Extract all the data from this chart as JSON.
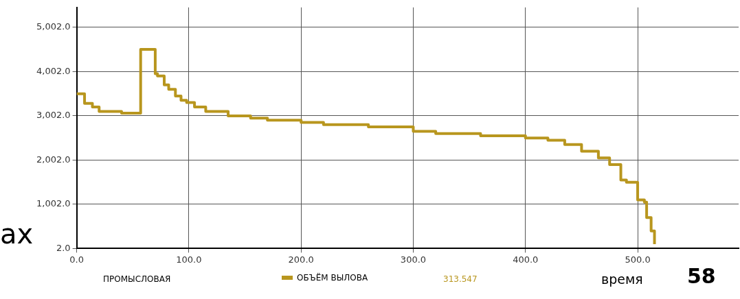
{
  "chart_data": {
    "type": "step",
    "xlabel": "время",
    "legend": "bottom",
    "grid": true,
    "marker": "none",
    "line_style": "solid",
    "xlim": [
      0,
      590
    ],
    "xticks": [
      {
        "value": 0,
        "label": "0.0"
      },
      {
        "value": 100,
        "label": "100.0"
      },
      {
        "value": 200,
        "label": "200.0"
      },
      {
        "value": 300,
        "label": "300.0"
      },
      {
        "value": 400,
        "label": "400.0"
      },
      {
        "value": 500,
        "label": "500.0"
      }
    ],
    "ylim": [
      2,
      5450
    ],
    "yticks": [
      {
        "value": 2,
        "label": "2.0"
      },
      {
        "value": 1002,
        "label": "1,002.0"
      },
      {
        "value": 2002,
        "label": "2,002.0"
      },
      {
        "value": 3002,
        "label": "3,002.0"
      },
      {
        "value": 4002,
        "label": "4,002.0"
      },
      {
        "value": 5002,
        "label": "5,002.0"
      }
    ],
    "x": [
      0,
      7,
      14,
      20,
      40,
      57,
      70,
      72,
      78,
      82,
      88,
      93,
      98,
      105,
      115,
      135,
      155,
      170,
      200,
      220,
      260,
      300,
      320,
      360,
      400,
      420,
      435,
      450,
      465,
      475,
      485,
      490,
      500,
      506,
      508,
      512,
      515
    ],
    "series": [
      {
        "name": "ОБЪЁМ ВЫЛОВА",
        "color": "#b8961e",
        "values": [
          3500,
          3280,
          3200,
          3100,
          3060,
          4500,
          3950,
          3900,
          3700,
          3600,
          3450,
          3350,
          3300,
          3200,
          3100,
          3000,
          2950,
          2900,
          2850,
          2800,
          2750,
          2650,
          2600,
          2550,
          2500,
          2450,
          2350,
          2200,
          2050,
          1900,
          1550,
          1500,
          1100,
          1050,
          700,
          400,
          100
        ]
      }
    ],
    "annotations": [
      "ах",
      "ПРОМЫСЛОВАЯ",
      "313.547",
      "58"
    ]
  }
}
